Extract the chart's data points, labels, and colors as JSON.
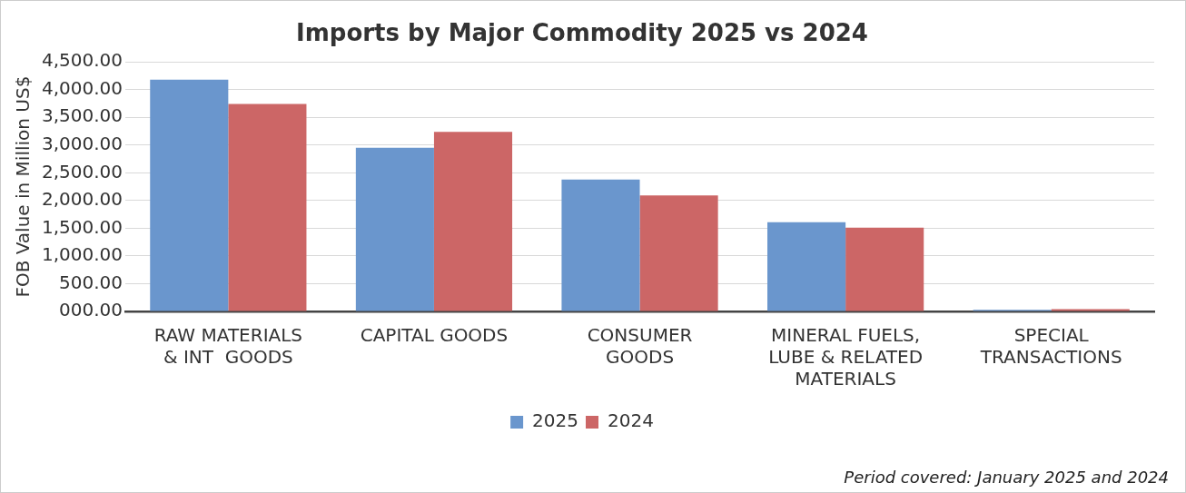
{
  "chart_data": {
    "type": "bar",
    "title": "Imports by Major Commodity 2025 vs 2024",
    "ylabel": "FOB Value in Million US$",
    "categories": [
      "RAW MATERIALS\n& INT  GOODS",
      "CAPITAL GOODS",
      "CONSUMER\nGOODS",
      "MINERAL FUELS,\nLUBE & RELATED\nMATERIALS",
      "SPECIAL\nTRANSACTIONS"
    ],
    "series": [
      {
        "name": "2025",
        "color": "#6a96cd",
        "values": [
          4180,
          2950,
          2380,
          1610,
          30
        ]
      },
      {
        "name": "2024",
        "color": "#cc6666",
        "values": [
          3740,
          3240,
          2090,
          1510,
          40
        ]
      }
    ],
    "ylim": [
      0,
      4500
    ],
    "yticks": [
      {
        "value": 0,
        "label": "000.00"
      },
      {
        "value": 500,
        "label": "500.00"
      },
      {
        "value": 1000,
        "label": "1,000.00"
      },
      {
        "value": 1500,
        "label": "1,500.00"
      },
      {
        "value": 2000,
        "label": "2,000.00"
      },
      {
        "value": 2500,
        "label": "2,500.00"
      },
      {
        "value": 3000,
        "label": "3,000.00"
      },
      {
        "value": 3500,
        "label": "3,500.00"
      },
      {
        "value": 4000,
        "label": "4,000.00"
      },
      {
        "value": 4500,
        "label": "4,500.00"
      }
    ],
    "grid": "y",
    "legend": "bottom",
    "annotations": [
      "Period covered: January 2025 and 2024"
    ]
  }
}
